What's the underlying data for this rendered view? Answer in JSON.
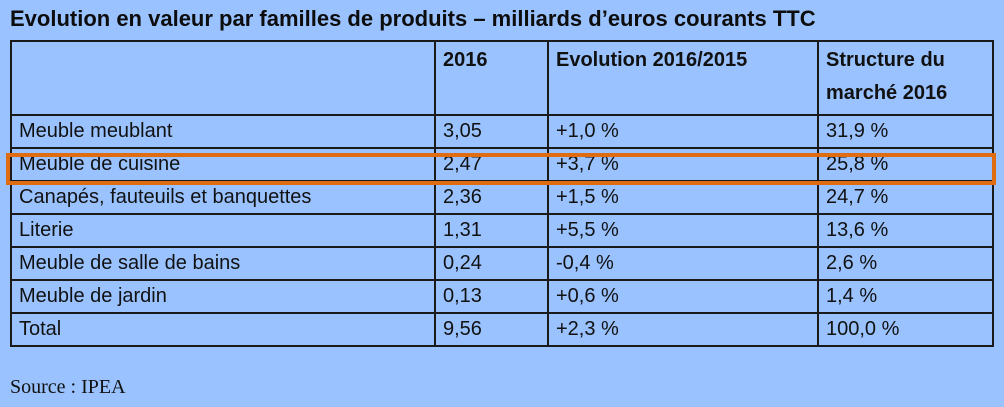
{
  "title": "Evolution en valeur par familles de produits – milliards d’euros courants TTC",
  "table": {
    "headers": [
      "",
      "2016",
      "Evolution 2016/2015",
      "Structure du marché 2016"
    ],
    "rows": [
      [
        "Meuble meublant",
        "3,05",
        "+1,0 %",
        "31,9 %"
      ],
      [
        "Meuble de cuisine",
        "2,47",
        "+3,7 %",
        "25,8 %"
      ],
      [
        "Canapés, fauteuils et banquettes",
        "2,36",
        "+1,5 %",
        "24,7 %"
      ],
      [
        "Literie",
        "1,31",
        "+5,5 %",
        "13,6 %"
      ],
      [
        "Meuble de salle de bains",
        "0,24",
        "-0,4 %",
        "2,6 %"
      ],
      [
        "Meuble de jardin",
        "0,13",
        "+0,6 %",
        "1,4 %"
      ],
      [
        "Total",
        "9,56",
        "+2,3 %",
        "100,0 %"
      ]
    ],
    "highlighted_row": "Meuble de cuisine"
  },
  "source": "Source : IPEA",
  "colors": {
    "background": "#99c2ff",
    "border": "#1a1a1a",
    "highlight": "#e06c12"
  }
}
